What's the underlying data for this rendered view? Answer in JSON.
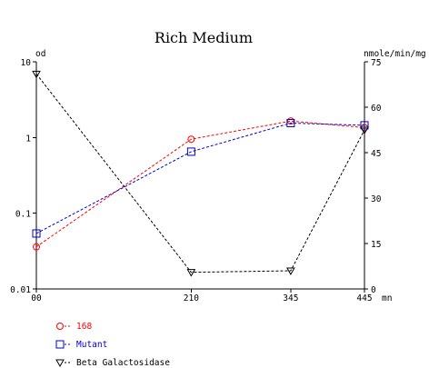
{
  "chart_data": {
    "type": "line",
    "title": "Rich Medium",
    "x": [
      "00",
      "210",
      "345",
      "445"
    ],
    "x_values": [
      0,
      210,
      345,
      445
    ],
    "xlabel": "mn",
    "xlim": [
      0,
      445
    ],
    "left_axis": {
      "label": "od",
      "scale": "log",
      "ylim": [
        0.01,
        10
      ],
      "ticks": [
        "10",
        "1",
        "0.1",
        "0.01"
      ]
    },
    "right_axis": {
      "label": "nmole/min/mg",
      "scale": "linear",
      "ylim": [
        0,
        75
      ],
      "ticks": [
        "75",
        "60",
        "45",
        "30",
        "15",
        "0"
      ]
    },
    "grid": false,
    "legend_position": "bottom-left",
    "series": [
      {
        "name": "168",
        "axis": "left",
        "color": "#ff0000",
        "marker": "circle",
        "values": [
          0.036,
          0.95,
          1.65,
          1.35
        ]
      },
      {
        "name": "Mutant",
        "axis": "left",
        "color": "#0000cc",
        "marker": "square",
        "values": [
          0.054,
          0.65,
          1.55,
          1.45
        ]
      },
      {
        "name": "Beta Galactosidase",
        "axis": "right",
        "color": "#000000",
        "marker": "triangle-down",
        "values": [
          71,
          5.5,
          6,
          52.5
        ]
      }
    ]
  }
}
